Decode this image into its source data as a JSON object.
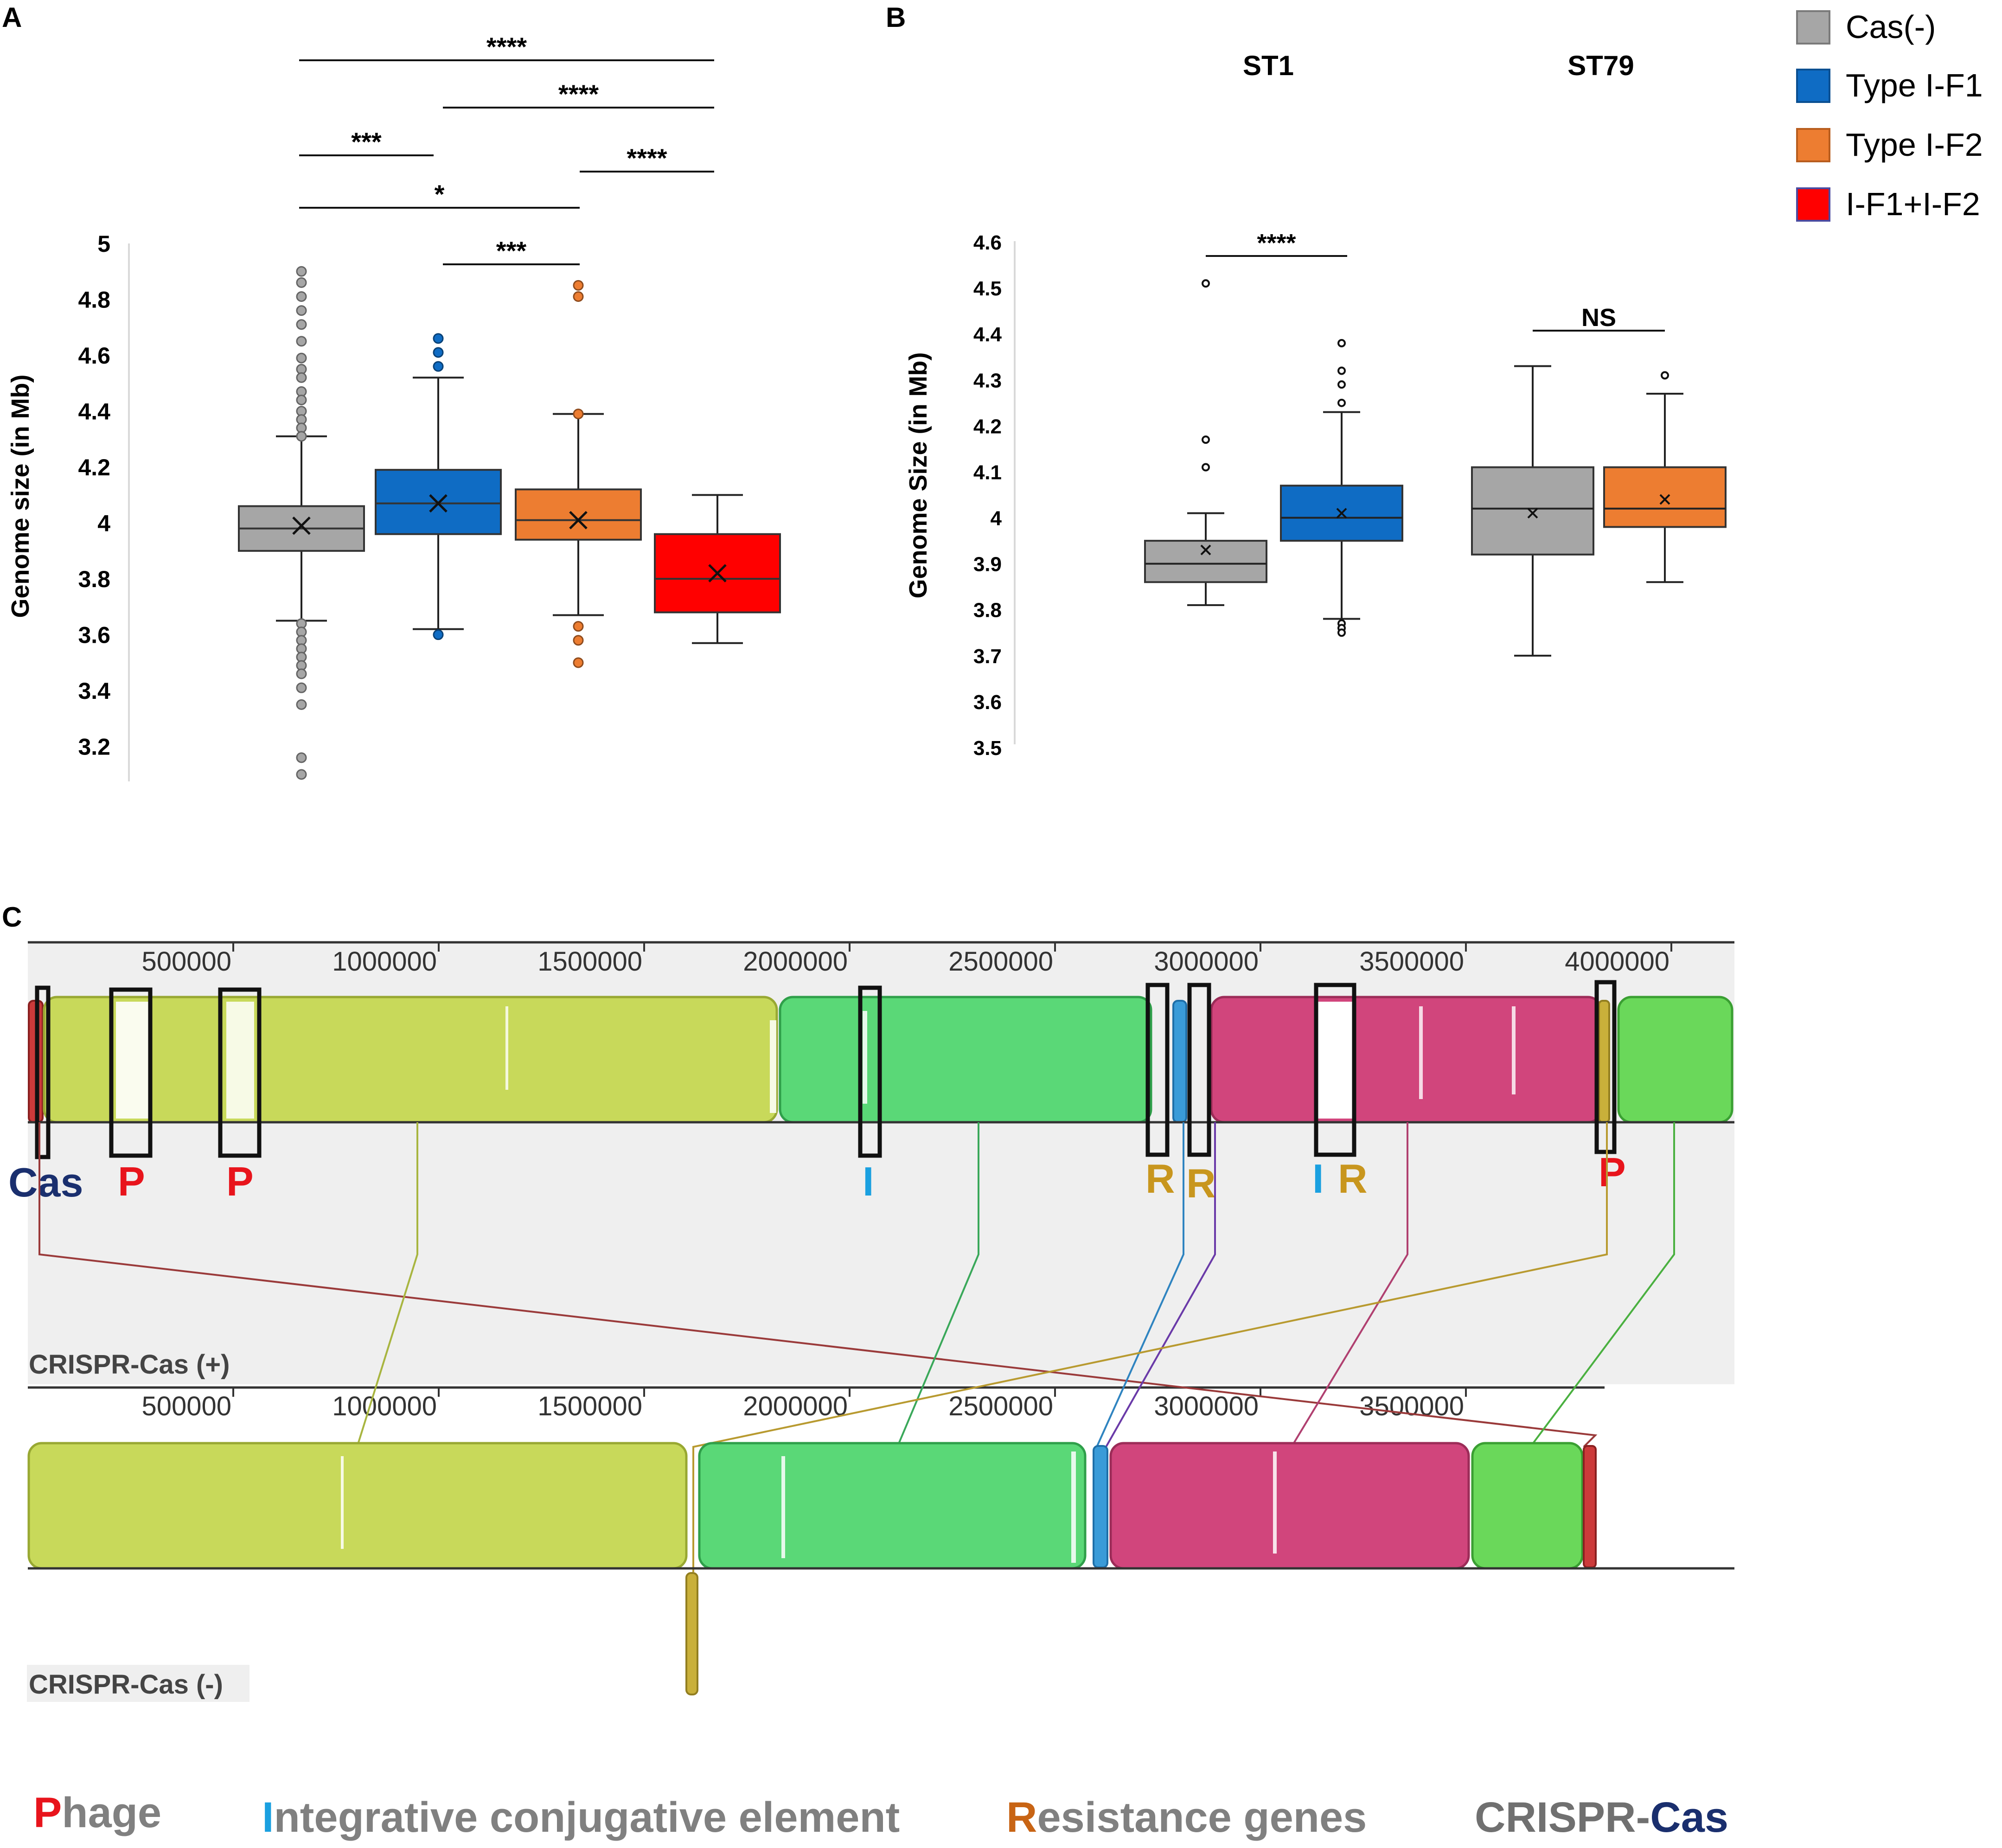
{
  "colors": {
    "cas_neg": "#a6a6a6",
    "type_if1": "#0f6cc4",
    "type_if2": "#ed7d31",
    "if1_if2": "#ff0000",
    "lcb_yellow": "#c8d95a",
    "lcb_green": "#5ad877",
    "lcb_blue": "#3a9bd8",
    "lcb_pink": "#d1457c",
    "lcb_lgreen": "#6ad85a",
    "lcb_red": "#cc3a3a",
    "lcb_ochre": "#c9b03a",
    "cas_label": "#1a2f6e"
  },
  "legend": {
    "items": [
      {
        "label": "Cas(-)",
        "color": "#a6a6a6"
      },
      {
        "label": "Type I-F1",
        "color": "#0f6cc4"
      },
      {
        "label": "Type I-F2",
        "color": "#ed7d31"
      },
      {
        "label": "I-F1+I-F2",
        "color": "#ff0000"
      }
    ]
  },
  "chart_data": [
    {
      "panel": "A",
      "type": "box",
      "ylabel": "Genome size (in Mb)",
      "ylim": [
        3.1,
        5.0
      ],
      "yticks": [
        "5",
        "4.8",
        "4.6",
        "4.4",
        "4.2",
        "4",
        "3.8",
        "3.6",
        "3.4",
        "3.2"
      ],
      "groups": [
        {
          "name": "Cas(-)",
          "color": "#a6a6a6",
          "whisker_low": 3.65,
          "q1": 3.9,
          "median": 3.98,
          "q3": 4.06,
          "whisker_high": 4.31,
          "mean": 3.99,
          "outliers": [
            4.9,
            4.86,
            4.81,
            4.76,
            4.71,
            4.65,
            4.59,
            4.55,
            4.52,
            4.47,
            4.44,
            4.4,
            4.37,
            4.34,
            4.31,
            3.64,
            3.61,
            3.58,
            3.55,
            3.52,
            3.49,
            3.46,
            3.41,
            3.35,
            3.16,
            3.1
          ]
        },
        {
          "name": "Type I-F1",
          "color": "#0f6cc4",
          "whisker_low": 3.62,
          "q1": 3.96,
          "median": 4.07,
          "q3": 4.19,
          "whisker_high": 4.52,
          "mean": 4.07,
          "outliers": [
            4.66,
            4.61,
            4.56,
            3.6
          ]
        },
        {
          "name": "Type I-F2",
          "color": "#ed7d31",
          "whisker_low": 3.67,
          "q1": 3.94,
          "median": 4.01,
          "q3": 4.12,
          "whisker_high": 4.39,
          "mean": 4.01,
          "outliers": [
            4.85,
            4.81,
            4.39,
            3.63,
            3.58,
            3.5
          ]
        },
        {
          "name": "I-F1+I-F2",
          "color": "#ff0000",
          "whisker_low": 3.57,
          "q1": 3.68,
          "median": 3.8,
          "q3": 3.96,
          "whisker_high": 4.1,
          "mean": 3.82,
          "outliers": []
        }
      ],
      "significance": [
        {
          "from": 0,
          "to": 3,
          "label": "****"
        },
        {
          "from": 1,
          "to": 3,
          "label": "****"
        },
        {
          "from": 0,
          "to": 1,
          "label": "***"
        },
        {
          "from": 2,
          "to": 3,
          "label": "****"
        },
        {
          "from": 0,
          "to": 2,
          "label": "*"
        },
        {
          "from": 1,
          "to": 2,
          "label": "***"
        }
      ]
    },
    {
      "panel": "B",
      "type": "box",
      "ylabel": "Genome Size (in Mb)",
      "ylim": [
        3.5,
        4.6
      ],
      "yticks": [
        "4.6",
        "4.5",
        "4.4",
        "4.3",
        "4.2",
        "4.1",
        "4",
        "3.9",
        "3.8",
        "3.7",
        "3.6",
        "3.5"
      ],
      "categories": [
        "ST1",
        "ST79"
      ],
      "groups": [
        {
          "category": "ST1",
          "name": "Cas(-)",
          "color": "#a6a6a6",
          "whisker_low": 3.81,
          "q1": 3.86,
          "median": 3.9,
          "q3": 3.95,
          "whisker_high": 4.01,
          "mean": 3.93,
          "outliers": [
            4.51,
            4.17,
            4.11
          ]
        },
        {
          "category": "ST1",
          "name": "Type I-F1",
          "color": "#0f6cc4",
          "whisker_low": 3.78,
          "q1": 3.95,
          "median": 4.0,
          "q3": 4.07,
          "whisker_high": 4.23,
          "mean": 4.01,
          "outliers": [
            4.38,
            4.32,
            4.29,
            4.25,
            3.77,
            3.76,
            3.75
          ]
        },
        {
          "category": "ST79",
          "name": "Cas(-)",
          "color": "#a6a6a6",
          "whisker_low": 3.7,
          "q1": 3.92,
          "median": 4.02,
          "q3": 4.11,
          "whisker_high": 4.33,
          "mean": 4.01,
          "outliers": []
        },
        {
          "category": "ST79",
          "name": "Type I-F2",
          "color": "#ed7d31",
          "whisker_low": 3.86,
          "q1": 3.98,
          "median": 4.02,
          "q3": 4.11,
          "whisker_high": 4.27,
          "mean": 4.04,
          "outliers": [
            4.31
          ]
        }
      ],
      "significance": [
        {
          "category": "ST1",
          "label": "****"
        },
        {
          "category": "ST79",
          "label": "NS"
        }
      ]
    }
  ],
  "panel_labels": {
    "a": "A",
    "b": "B",
    "c": "C"
  },
  "panel_b_titles": {
    "st1": "ST1",
    "st79": "ST79"
  },
  "panel_c": {
    "axis_ticks": [
      "500000",
      "1000000",
      "1500000",
      "2000000",
      "2500000",
      "3000000",
      "3500000",
      "4000000"
    ],
    "axis_ticks_lower": [
      "500000",
      "1000000",
      "1500000",
      "2000000",
      "2500000",
      "3000000",
      "3500000"
    ],
    "track_top_label": "CRISPR-Cas (+)",
    "track_bottom_label": "CRISPR-Cas (-)",
    "markers": [
      {
        "label": "Cas",
        "color": "#1a2f6e"
      },
      {
        "label": "P",
        "color": "#e8141c"
      },
      {
        "label": "P",
        "color": "#e8141c"
      },
      {
        "label": "I",
        "color": "#1aa0e0"
      },
      {
        "label": "R",
        "color": "#c8961e"
      },
      {
        "label": "R",
        "color": "#c8961e"
      },
      {
        "label": "I",
        "color": "#1aa0e0"
      },
      {
        "label": "R",
        "color": "#c8961e"
      },
      {
        "label": "P",
        "color": "#e8141c"
      }
    ],
    "key": [
      {
        "initial": "P",
        "rest": "hage",
        "initial_color": "#e8141c"
      },
      {
        "initial": "I",
        "rest": "ntegrative conjugative element",
        "initial_color": "#1aa0e0"
      },
      {
        "initial": "R",
        "rest": "esistance genes",
        "initial_color": "#c86414"
      },
      {
        "initial": "CRISPR-",
        "rest": "Cas",
        "initial_color": "#707070",
        "rest_color": "#1a2f6e"
      }
    ]
  }
}
